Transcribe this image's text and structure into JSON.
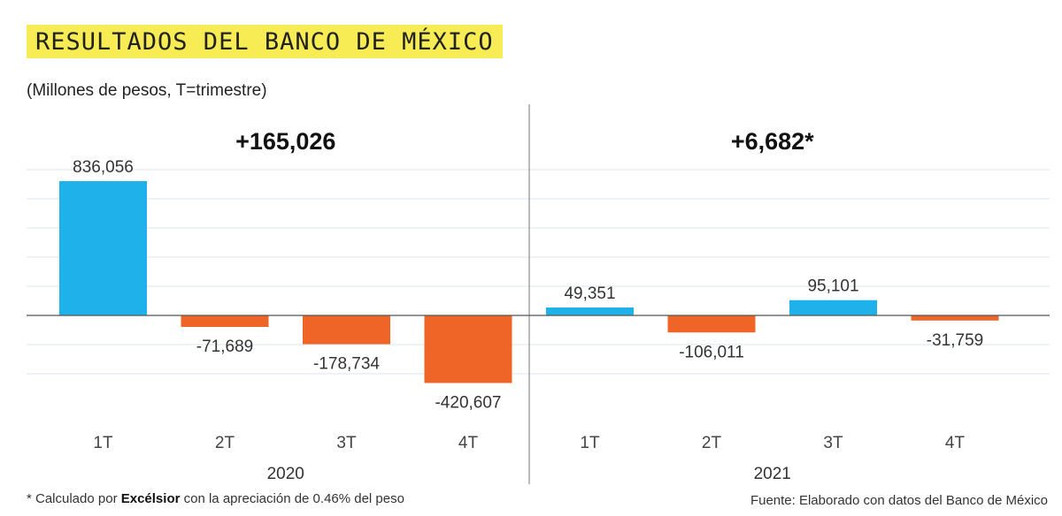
{
  "header": {
    "title": "RESULTADOS DEL BANCO DE MÉXICO",
    "subtitle": "(Millones de pesos, T=trimestre)"
  },
  "footer": {
    "note_prefix": "* Calculado por",
    "note_brand": "Excélsior",
    "note_suffix": "con la apreciación de 0.46% del peso",
    "source": "Fuente: Elaborado con datos del Banco de México"
  },
  "colors": {
    "positive": "#1eb1ea",
    "negative": "#ef6527",
    "gridline": "#d9e6ee",
    "axis": "#555555"
  },
  "chart_data": {
    "type": "bar",
    "title": "RESULTADOS DEL BANCO DE MÉXICO",
    "subtitle": "(Millones de pesos, T=trimestre)",
    "grid": true,
    "groups": [
      {
        "year": "2020",
        "total": "+165,026",
        "categories": [
          "1T",
          "2T",
          "3T",
          "4T"
        ],
        "values": [
          836056,
          -71689,
          -178734,
          -420607
        ],
        "labels": [
          "836,056",
          "-71,689",
          "-178,734",
          "-420,607"
        ]
      },
      {
        "year": "2021",
        "total": "+6,682*",
        "categories": [
          "1T",
          "2T",
          "3T",
          "4T"
        ],
        "values": [
          49351,
          -106011,
          95101,
          -31759
        ],
        "labels": [
          "49,351",
          "-106,011",
          "95,101",
          "-31,759"
        ]
      }
    ]
  }
}
